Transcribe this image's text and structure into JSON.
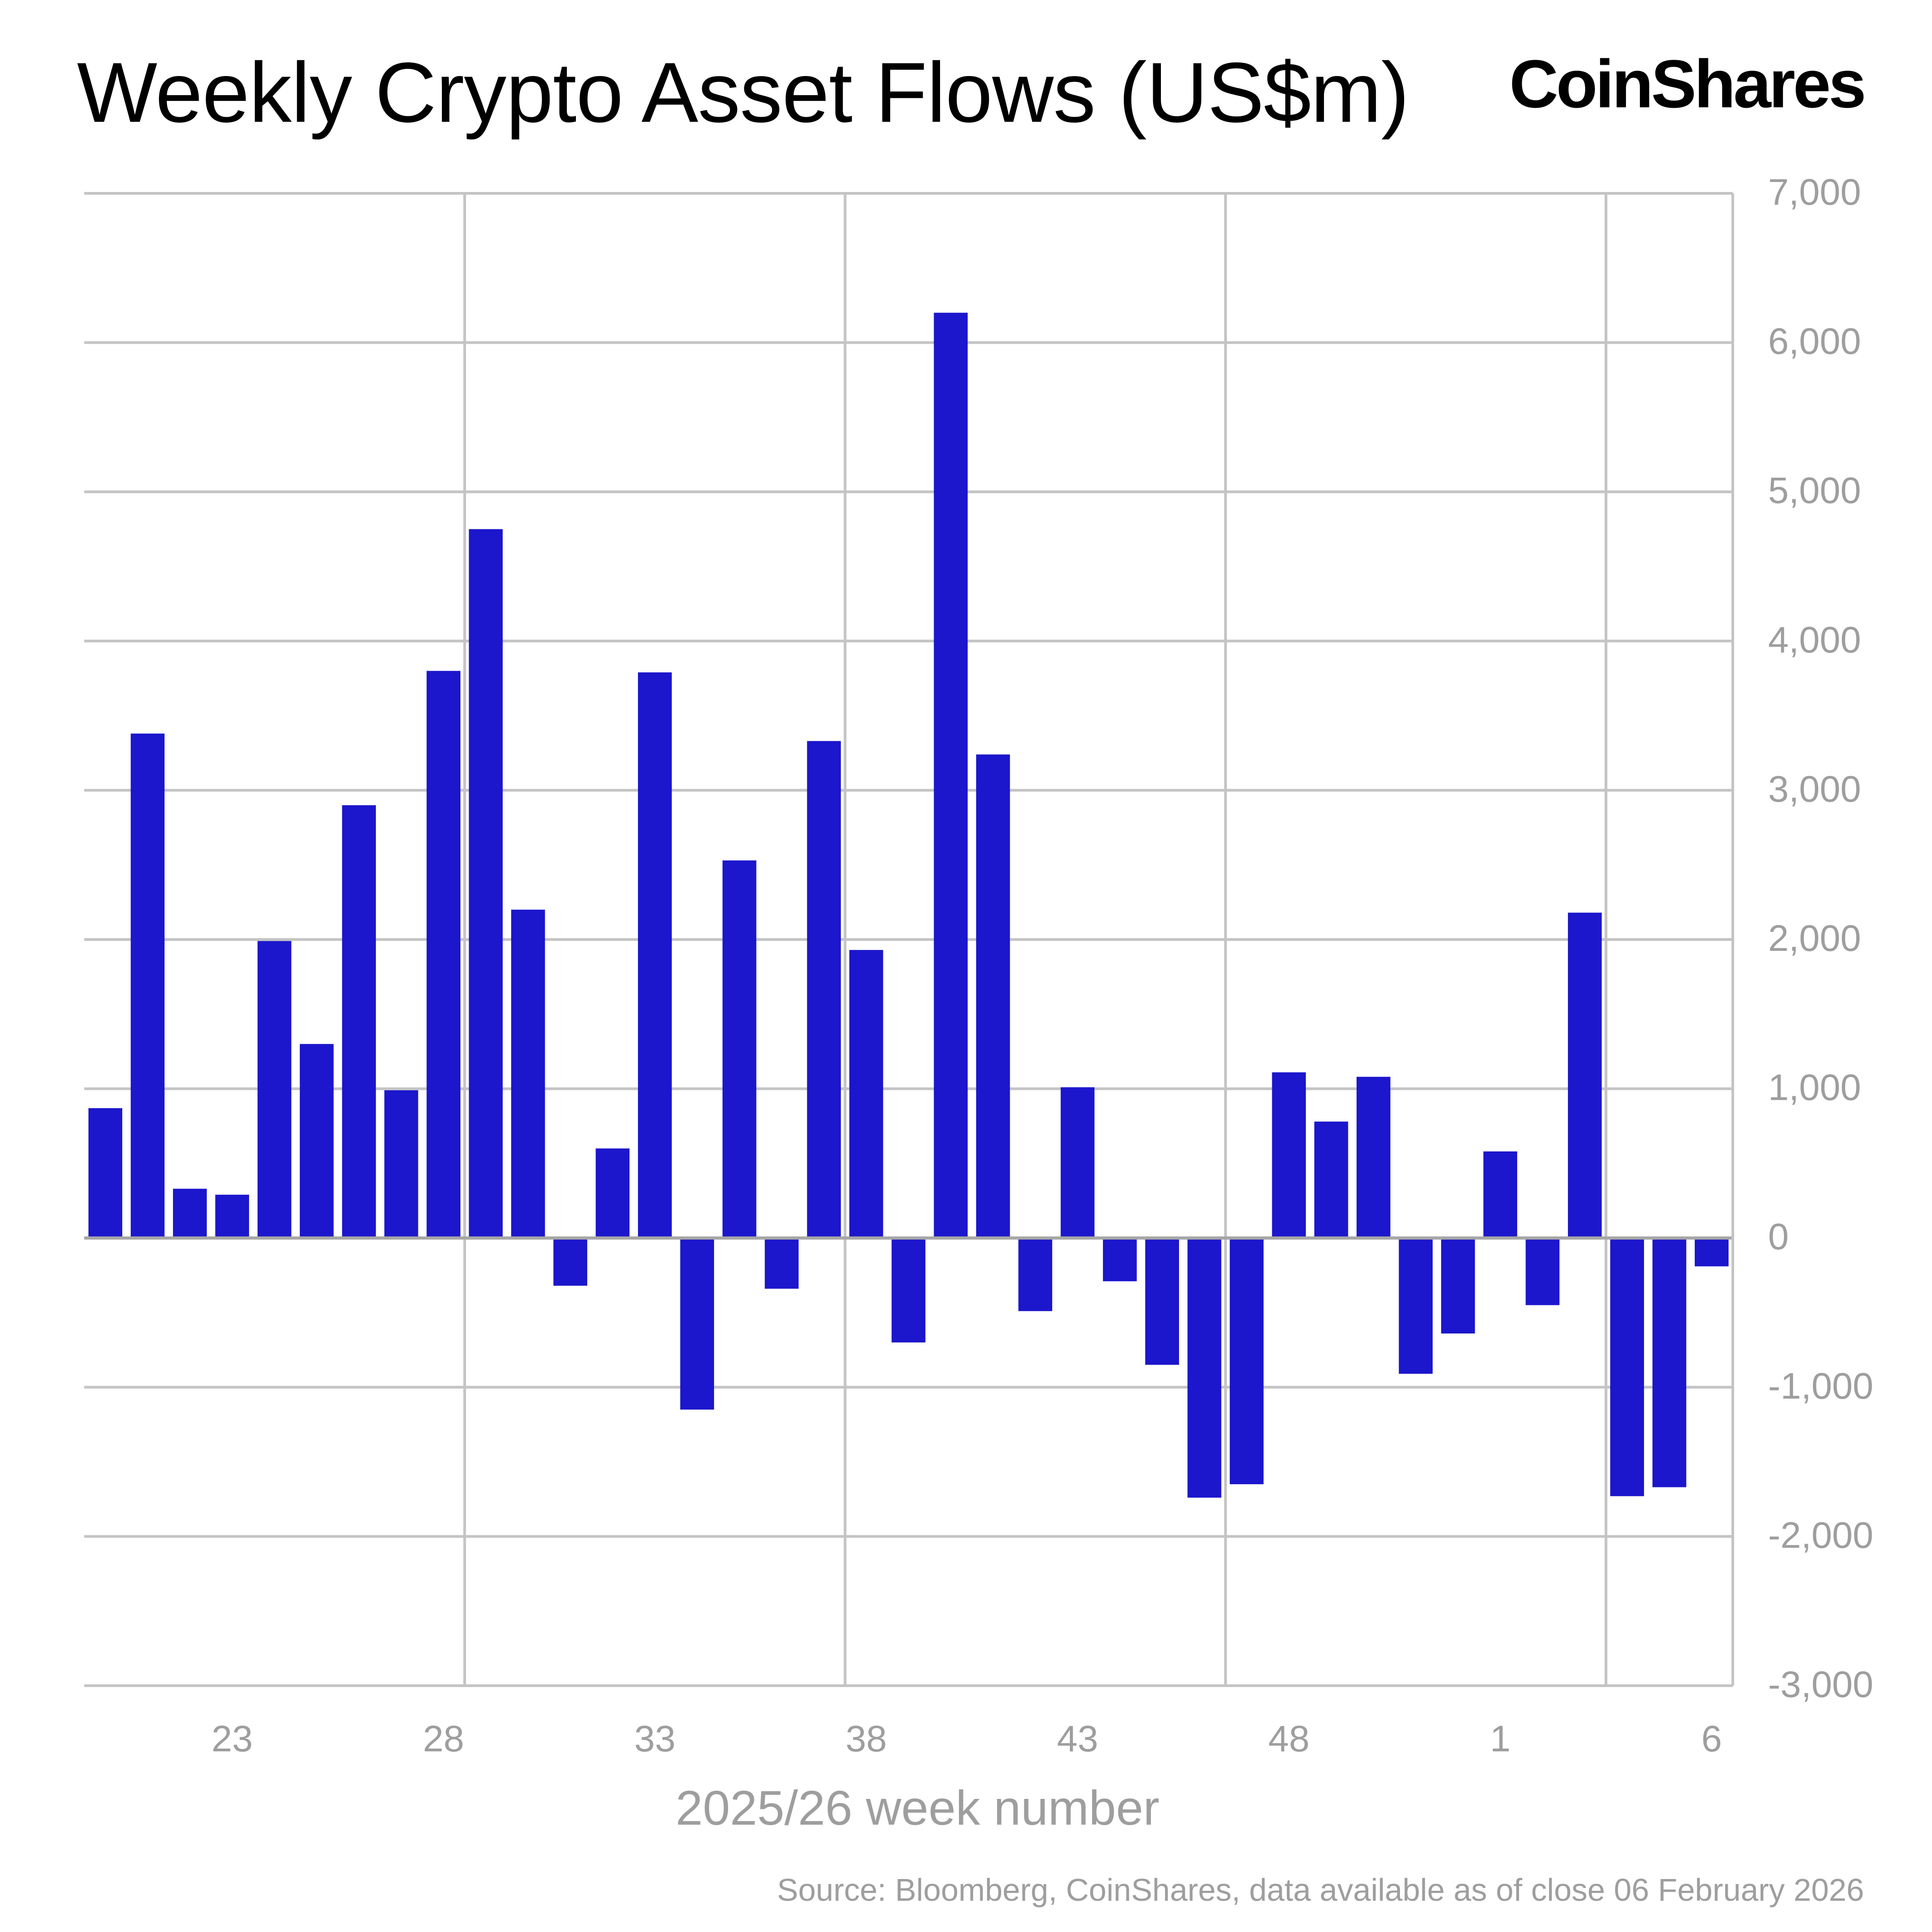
{
  "chart_data": {
    "type": "bar",
    "title": "Weekly Crypto Asset Flows (US$m)",
    "xlabel": "2025/26 week number",
    "ylabel": "",
    "ylim": [
      -3000,
      7000
    ],
    "yticks": [
      -3000,
      -2000,
      -1000,
      0,
      1000,
      2000,
      3000,
      4000,
      5000,
      6000,
      7000
    ],
    "ytick_labels": [
      "-3,000",
      "-2,000",
      "-1,000",
      "0",
      "1,000",
      "2,000",
      "3,000",
      "4,000",
      "5,000",
      "6,000",
      "7,000"
    ],
    "y_axis_side": "right",
    "x_tick_labels": [
      "23",
      "28",
      "33",
      "38",
      "43",
      "48",
      "1",
      "6"
    ],
    "grid": true,
    "categories": [
      "20",
      "21",
      "22",
      "23",
      "24",
      "25",
      "26",
      "27",
      "28",
      "29",
      "30",
      "31",
      "32",
      "33",
      "34",
      "35",
      "36",
      "37",
      "38",
      "39",
      "40",
      "41",
      "42",
      "43",
      "44",
      "45",
      "46",
      "47",
      "48",
      "49",
      "50",
      "51",
      "52",
      "1",
      "2",
      "3",
      "4",
      "5",
      "6"
    ],
    "values": [
      870,
      3380,
      330,
      290,
      1990,
      1300,
      2900,
      990,
      3800,
      4750,
      2200,
      -320,
      600,
      3790,
      -1150,
      2530,
      -340,
      3330,
      1930,
      -700,
      6200,
      3240,
      -490,
      1010,
      -290,
      -850,
      -1740,
      -1650,
      1110,
      780,
      1080,
      -910,
      -640,
      580,
      -450,
      2180,
      -1730,
      -1670,
      -190
    ],
    "bar_color": "#1c16cc",
    "grid_color": "#c4c4c4"
  },
  "brand": "CoinShares",
  "source_note": "Source: Bloomberg, CoinShares, data available as of close 06 February 2026"
}
